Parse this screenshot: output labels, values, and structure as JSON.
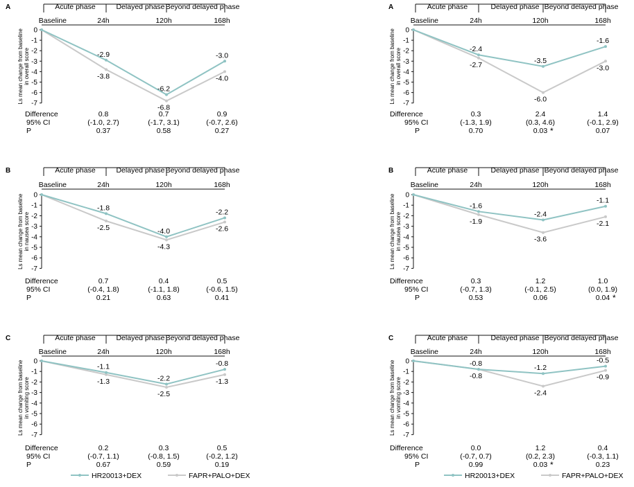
{
  "colors": {
    "hr": "#8fc3c3",
    "fapr": "#c9c9c9",
    "axis": "#111111",
    "text": "#111111"
  },
  "phases": [
    "Acute phase",
    "Delayed phase",
    "Beyond delayed phase"
  ],
  "stat_labels": [
    "Difference",
    "95% CI",
    "P"
  ],
  "legend": {
    "hr": "HR20013+DEX",
    "fapr": "FAPR+PALO+DEX"
  },
  "chart_data": [
    {
      "type": "line",
      "panel": "A",
      "col": 0,
      "row": 0,
      "ylabel": [
        "Ls mean change from baseline",
        "in overall score"
      ],
      "x": [
        "Baseline",
        "24h",
        "120h",
        "168h"
      ],
      "ylim": [
        -7,
        0
      ],
      "yticks": [
        "0",
        "-1",
        "-2",
        "-3",
        "-4",
        "-5",
        "-6",
        "-7"
      ],
      "series": [
        {
          "name": "HR20013+DEX",
          "values": [
            0,
            -2.9,
            -6.2,
            -3.0
          ],
          "labels": [
            "",
            "-2.9",
            "-6.2",
            "-3.0"
          ]
        },
        {
          "name": "FAPR+PALO+DEX",
          "values": [
            0,
            -3.8,
            -6.8,
            -4.0
          ],
          "labels": [
            "",
            "-3.8",
            "-6.8",
            "-4.0"
          ]
        }
      ],
      "stats": {
        "difference": [
          "0.8",
          "0.7",
          "0.9"
        ],
        "ci": [
          "(-1.0, 2.7)",
          "(-1.7, 3.1)",
          "(-0.7, 2.6)"
        ],
        "p": [
          "0.37",
          "0.58",
          "0.27"
        ]
      }
    },
    {
      "type": "line",
      "panel": "A",
      "col": 1,
      "row": 0,
      "ylabel": [
        "Ls mean change from baseline",
        "in overall score"
      ],
      "x": [
        "Baseline",
        "24h",
        "120h",
        "168h"
      ],
      "ylim": [
        -7,
        0
      ],
      "yticks": [
        "0",
        "-1",
        "-2",
        "-3",
        "-4",
        "-5",
        "-6",
        "-7"
      ],
      "series": [
        {
          "name": "HR20013+DEX",
          "values": [
            0,
            -2.4,
            -3.5,
            -1.6
          ],
          "labels": [
            "",
            "-2.4",
            "-3.5",
            "-1.6"
          ]
        },
        {
          "name": "FAPR+PALO+DEX",
          "values": [
            0,
            -2.7,
            -6.0,
            -3.0
          ],
          "labels": [
            "",
            "-2.7",
            "-6.0",
            "-3.0"
          ]
        }
      ],
      "stats": {
        "difference": [
          "0.3",
          "2.4",
          "1.4"
        ],
        "ci": [
          "(-1.3, 1.9)",
          "(0.3, 4.6)",
          "(-0.1, 2.9)"
        ],
        "p": [
          "0.70",
          "0.03",
          "0.07"
        ],
        "sig": [
          false,
          true,
          false
        ]
      }
    },
    {
      "type": "line",
      "panel": "B",
      "col": 0,
      "row": 1,
      "ylabel": [
        "Ls mean change from baseline",
        "in nausea score"
      ],
      "x": [
        "Baseline",
        "24h",
        "120h",
        "168h"
      ],
      "ylim": [
        -7,
        0
      ],
      "yticks": [
        "0",
        "-1",
        "-2",
        "-3",
        "-4",
        "-5",
        "-6",
        "-7"
      ],
      "series": [
        {
          "name": "HR20013+DEX",
          "values": [
            0,
            -1.8,
            -4.0,
            -2.2
          ],
          "labels": [
            "",
            "-1.8",
            "-4.0",
            "-2.2"
          ]
        },
        {
          "name": "FAPR+PALO+DEX",
          "values": [
            0,
            -2.5,
            -4.3,
            -2.6
          ],
          "labels": [
            "",
            "-2.5",
            "-4.3",
            "-2.6"
          ]
        }
      ],
      "stats": {
        "difference": [
          "0.7",
          "0.4",
          "0.5"
        ],
        "ci": [
          "(-0.4, 1.8)",
          "(-1.1, 1.8)",
          "(-0.6, 1.5)"
        ],
        "p": [
          "0.21",
          "0.63",
          "0.41"
        ]
      }
    },
    {
      "type": "line",
      "panel": "B",
      "col": 1,
      "row": 1,
      "ylabel": [
        "Ls mean change from baseline",
        "in nausea score"
      ],
      "x": [
        "Baseline",
        "24h",
        "120h",
        "168h"
      ],
      "ylim": [
        -7,
        0
      ],
      "yticks": [
        "0",
        "-1",
        "-2",
        "-3",
        "-4",
        "-5",
        "-6",
        "-7"
      ],
      "series": [
        {
          "name": "HR20013+DEX",
          "values": [
            0,
            -1.6,
            -2.4,
            -1.1
          ],
          "labels": [
            "",
            "-1.6",
            "-2.4",
            "-1.1"
          ]
        },
        {
          "name": "FAPR+PALO+DEX",
          "values": [
            0,
            -1.9,
            -3.6,
            -2.1
          ],
          "labels": [
            "",
            "-1.9",
            "-3.6",
            "-2.1"
          ]
        }
      ],
      "stats": {
        "difference": [
          "0.3",
          "1.2",
          "1.0"
        ],
        "ci": [
          "(-0.7, 1.3)",
          "(-0.1, 2.5)",
          "(0.0, 1.9)"
        ],
        "p": [
          "0.53",
          "0.06",
          "0.04"
        ],
        "sig": [
          false,
          false,
          true
        ]
      }
    },
    {
      "type": "line",
      "panel": "C",
      "col": 0,
      "row": 2,
      "ylabel": [
        "Ls mean change from baseline",
        "in vomiting score"
      ],
      "x": [
        "Baseline",
        "24h",
        "120h",
        "168h"
      ],
      "ylim": [
        -7,
        0
      ],
      "yticks": [
        "0",
        "-1",
        "-2",
        "-3",
        "-4",
        "-5",
        "-6",
        "-7"
      ],
      "series": [
        {
          "name": "HR20013+DEX",
          "values": [
            0,
            -1.1,
            -2.2,
            -0.8
          ],
          "labels": [
            "",
            "-1.1",
            "-2.2",
            "-0.8"
          ]
        },
        {
          "name": "FAPR+PALO+DEX",
          "values": [
            0,
            -1.3,
            -2.5,
            -1.3
          ],
          "labels": [
            "",
            "-1.3",
            "-2.5",
            "-1.3"
          ]
        }
      ],
      "stats": {
        "difference": [
          "0.2",
          "0.3",
          "0.5"
        ],
        "ci": [
          "(-0.7, 1.1)",
          "(-0.8, 1.5)",
          "(-0.2, 1.2)"
        ],
        "p": [
          "0.67",
          "0.59",
          "0.19"
        ]
      }
    },
    {
      "type": "line",
      "panel": "C",
      "col": 1,
      "row": 2,
      "ylabel": [
        "Ls mean change from baseline",
        "in vomiting score"
      ],
      "x": [
        "Baseline",
        "24h",
        "120h",
        "168h"
      ],
      "ylim": [
        -7,
        0
      ],
      "yticks": [
        "0",
        "-1",
        "-2",
        "-3",
        "-4",
        "-5",
        "-6",
        "-7"
      ],
      "series": [
        {
          "name": "HR20013+DEX",
          "values": [
            0,
            -0.8,
            -1.2,
            -0.5
          ],
          "labels": [
            "",
            "-0.8",
            "-1.2",
            "-0.5"
          ]
        },
        {
          "name": "FAPR+PALO+DEX",
          "values": [
            0,
            -0.8,
            -2.4,
            -0.9
          ],
          "labels": [
            "",
            "-0.8",
            "-2.4",
            "-0.9"
          ]
        }
      ],
      "stats": {
        "difference": [
          "0.0",
          "1.2",
          "0.4"
        ],
        "ci": [
          "(-0.7, 0.7)",
          "(0.2, 2.3)",
          "(-0.3, 1.1)"
        ],
        "p": [
          "0.99",
          "0.03",
          "0.23"
        ],
        "sig": [
          false,
          true,
          false
        ]
      }
    }
  ]
}
